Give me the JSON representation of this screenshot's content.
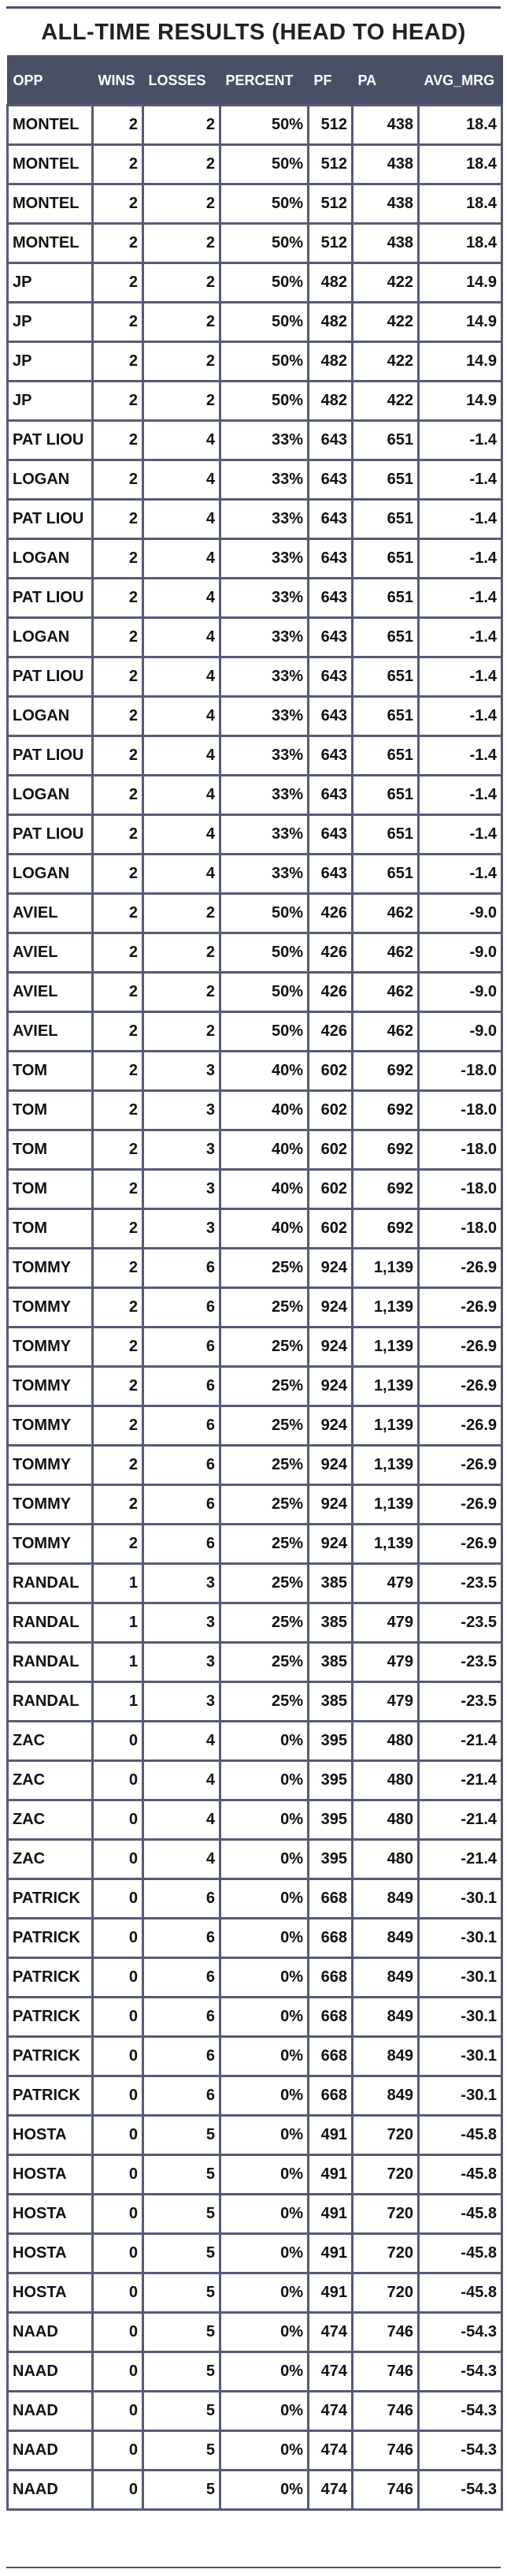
{
  "title": "ALL-TIME RESULTS (HEAD TO HEAD)",
  "columns": [
    "OPP",
    "WINS",
    "LOSSES",
    "PERCENT",
    "PF",
    "PA",
    "AVG_MRG"
  ],
  "rows": [
    [
      "MONTEL",
      "2",
      "2",
      "50%",
      "512",
      "438",
      "18.4"
    ],
    [
      "MONTEL",
      "2",
      "2",
      "50%",
      "512",
      "438",
      "18.4"
    ],
    [
      "MONTEL",
      "2",
      "2",
      "50%",
      "512",
      "438",
      "18.4"
    ],
    [
      "MONTEL",
      "2",
      "2",
      "50%",
      "512",
      "438",
      "18.4"
    ],
    [
      "JP",
      "2",
      "2",
      "50%",
      "482",
      "422",
      "14.9"
    ],
    [
      "JP",
      "2",
      "2",
      "50%",
      "482",
      "422",
      "14.9"
    ],
    [
      "JP",
      "2",
      "2",
      "50%",
      "482",
      "422",
      "14.9"
    ],
    [
      "JP",
      "2",
      "2",
      "50%",
      "482",
      "422",
      "14.9"
    ],
    [
      "PAT LIOU",
      "2",
      "4",
      "33%",
      "643",
      "651",
      "-1.4"
    ],
    [
      "LOGAN",
      "2",
      "4",
      "33%",
      "643",
      "651",
      "-1.4"
    ],
    [
      "PAT LIOU",
      "2",
      "4",
      "33%",
      "643",
      "651",
      "-1.4"
    ],
    [
      "LOGAN",
      "2",
      "4",
      "33%",
      "643",
      "651",
      "-1.4"
    ],
    [
      "PAT LIOU",
      "2",
      "4",
      "33%",
      "643",
      "651",
      "-1.4"
    ],
    [
      "LOGAN",
      "2",
      "4",
      "33%",
      "643",
      "651",
      "-1.4"
    ],
    [
      "PAT LIOU",
      "2",
      "4",
      "33%",
      "643",
      "651",
      "-1.4"
    ],
    [
      "LOGAN",
      "2",
      "4",
      "33%",
      "643",
      "651",
      "-1.4"
    ],
    [
      "PAT LIOU",
      "2",
      "4",
      "33%",
      "643",
      "651",
      "-1.4"
    ],
    [
      "LOGAN",
      "2",
      "4",
      "33%",
      "643",
      "651",
      "-1.4"
    ],
    [
      "PAT LIOU",
      "2",
      "4",
      "33%",
      "643",
      "651",
      "-1.4"
    ],
    [
      "LOGAN",
      "2",
      "4",
      "33%",
      "643",
      "651",
      "-1.4"
    ],
    [
      "AVIEL",
      "2",
      "2",
      "50%",
      "426",
      "462",
      "-9.0"
    ],
    [
      "AVIEL",
      "2",
      "2",
      "50%",
      "426",
      "462",
      "-9.0"
    ],
    [
      "AVIEL",
      "2",
      "2",
      "50%",
      "426",
      "462",
      "-9.0"
    ],
    [
      "AVIEL",
      "2",
      "2",
      "50%",
      "426",
      "462",
      "-9.0"
    ],
    [
      "TOM",
      "2",
      "3",
      "40%",
      "602",
      "692",
      "-18.0"
    ],
    [
      "TOM",
      "2",
      "3",
      "40%",
      "602",
      "692",
      "-18.0"
    ],
    [
      "TOM",
      "2",
      "3",
      "40%",
      "602",
      "692",
      "-18.0"
    ],
    [
      "TOM",
      "2",
      "3",
      "40%",
      "602",
      "692",
      "-18.0"
    ],
    [
      "TOM",
      "2",
      "3",
      "40%",
      "602",
      "692",
      "-18.0"
    ],
    [
      "TOMMY",
      "2",
      "6",
      "25%",
      "924",
      "1,139",
      "-26.9"
    ],
    [
      "TOMMY",
      "2",
      "6",
      "25%",
      "924",
      "1,139",
      "-26.9"
    ],
    [
      "TOMMY",
      "2",
      "6",
      "25%",
      "924",
      "1,139",
      "-26.9"
    ],
    [
      "TOMMY",
      "2",
      "6",
      "25%",
      "924",
      "1,139",
      "-26.9"
    ],
    [
      "TOMMY",
      "2",
      "6",
      "25%",
      "924",
      "1,139",
      "-26.9"
    ],
    [
      "TOMMY",
      "2",
      "6",
      "25%",
      "924",
      "1,139",
      "-26.9"
    ],
    [
      "TOMMY",
      "2",
      "6",
      "25%",
      "924",
      "1,139",
      "-26.9"
    ],
    [
      "TOMMY",
      "2",
      "6",
      "25%",
      "924",
      "1,139",
      "-26.9"
    ],
    [
      "RANDAL",
      "1",
      "3",
      "25%",
      "385",
      "479",
      "-23.5"
    ],
    [
      "RANDAL",
      "1",
      "3",
      "25%",
      "385",
      "479",
      "-23.5"
    ],
    [
      "RANDAL",
      "1",
      "3",
      "25%",
      "385",
      "479",
      "-23.5"
    ],
    [
      "RANDAL",
      "1",
      "3",
      "25%",
      "385",
      "479",
      "-23.5"
    ],
    [
      "ZAC",
      "0",
      "4",
      "0%",
      "395",
      "480",
      "-21.4"
    ],
    [
      "ZAC",
      "0",
      "4",
      "0%",
      "395",
      "480",
      "-21.4"
    ],
    [
      "ZAC",
      "0",
      "4",
      "0%",
      "395",
      "480",
      "-21.4"
    ],
    [
      "ZAC",
      "0",
      "4",
      "0%",
      "395",
      "480",
      "-21.4"
    ],
    [
      "PATRICK",
      "0",
      "6",
      "0%",
      "668",
      "849",
      "-30.1"
    ],
    [
      "PATRICK",
      "0",
      "6",
      "0%",
      "668",
      "849",
      "-30.1"
    ],
    [
      "PATRICK",
      "0",
      "6",
      "0%",
      "668",
      "849",
      "-30.1"
    ],
    [
      "PATRICK",
      "0",
      "6",
      "0%",
      "668",
      "849",
      "-30.1"
    ],
    [
      "PATRICK",
      "0",
      "6",
      "0%",
      "668",
      "849",
      "-30.1"
    ],
    [
      "PATRICK",
      "0",
      "6",
      "0%",
      "668",
      "849",
      "-30.1"
    ],
    [
      "HOSTA",
      "0",
      "5",
      "0%",
      "491",
      "720",
      "-45.8"
    ],
    [
      "HOSTA",
      "0",
      "5",
      "0%",
      "491",
      "720",
      "-45.8"
    ],
    [
      "HOSTA",
      "0",
      "5",
      "0%",
      "491",
      "720",
      "-45.8"
    ],
    [
      "HOSTA",
      "0",
      "5",
      "0%",
      "491",
      "720",
      "-45.8"
    ],
    [
      "HOSTA",
      "0",
      "5",
      "0%",
      "491",
      "720",
      "-45.8"
    ],
    [
      "NAAD",
      "0",
      "5",
      "0%",
      "474",
      "746",
      "-54.3"
    ],
    [
      "NAAD",
      "0",
      "5",
      "0%",
      "474",
      "746",
      "-54.3"
    ],
    [
      "NAAD",
      "0",
      "5",
      "0%",
      "474",
      "746",
      "-54.3"
    ],
    [
      "NAAD",
      "0",
      "5",
      "0%",
      "474",
      "746",
      "-54.3"
    ],
    [
      "NAAD",
      "0",
      "5",
      "0%",
      "474",
      "746",
      "-54.3"
    ]
  ],
  "colors": {
    "header_bg": "#4a4f68",
    "header_text": "#ffffff",
    "border": "#555b75",
    "text": "#111111"
  }
}
